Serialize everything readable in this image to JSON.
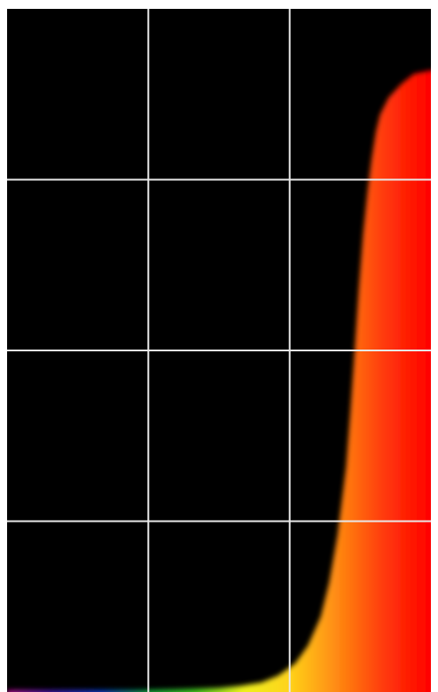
{
  "chart_data": {
    "type": "area",
    "title": "",
    "xlabel": "",
    "ylabel": "",
    "xlim": [
      0,
      1
    ],
    "ylim": [
      0,
      1
    ],
    "grid": true,
    "grid_color": "#e8e8e8",
    "background_color": "#000000",
    "x_grid_divisions": 3,
    "y_grid_divisions": 4,
    "fill": "spectrum-gradient",
    "spectrum_colors": [
      "#b0108a",
      "#3a1aa8",
      "#0a3cc8",
      "#12a03a",
      "#3ec21e",
      "#eef21a",
      "#ffd21a",
      "#ff8a12",
      "#ff3a0a",
      "#ff0000"
    ],
    "series": [
      {
        "x": [
          0.0,
          0.1,
          0.2,
          0.3,
          0.4,
          0.5,
          0.55,
          0.6,
          0.64,
          0.68,
          0.71,
          0.74,
          0.76,
          0.78,
          0.8,
          0.81,
          0.82,
          0.83,
          0.84,
          0.85,
          0.86,
          0.87,
          0.88,
          0.9,
          0.93,
          0.96,
          1.0
        ],
        "y": [
          0.003,
          0.003,
          0.003,
          0.003,
          0.004,
          0.006,
          0.009,
          0.014,
          0.024,
          0.042,
          0.068,
          0.11,
          0.16,
          0.23,
          0.33,
          0.41,
          0.5,
          0.59,
          0.67,
          0.73,
          0.78,
          0.82,
          0.845,
          0.87,
          0.89,
          0.905,
          0.91
        ]
      }
    ]
  }
}
